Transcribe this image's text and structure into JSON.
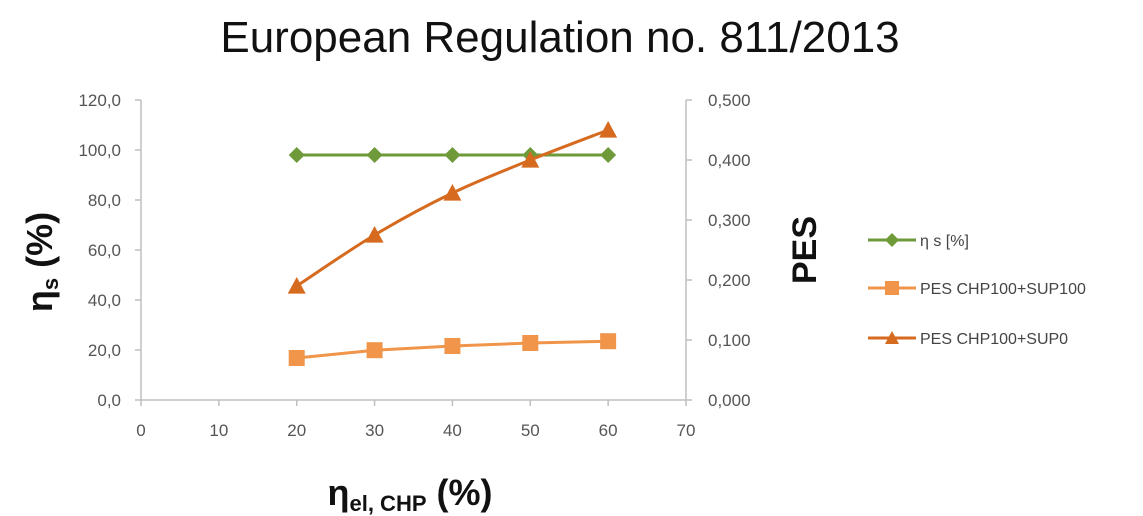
{
  "chart_data": {
    "type": "line",
    "title": "European Regulation no. 811/2013",
    "xlabel": {
      "main": "η",
      "sub": "el, CHP",
      "unit": " (%)"
    },
    "ylabel_left": {
      "main": "η",
      "sub": "s",
      "unit": " (%)"
    },
    "ylabel_right": "PES",
    "x": [
      20,
      30,
      40,
      50,
      60
    ],
    "xlim": [
      0,
      70
    ],
    "xticks": [
      "0",
      "10",
      "20",
      "30",
      "40",
      "50",
      "60",
      "70"
    ],
    "ylim_left": [
      0,
      120
    ],
    "yticks_left": [
      "0,0",
      "20,0",
      "40,0",
      "60,0",
      "80,0",
      "100,0",
      "120,0"
    ],
    "ylim_right": [
      0,
      0.5
    ],
    "yticks_right": [
      "0,000",
      "0,100",
      "0,200",
      "0,300",
      "0,400",
      "0,500"
    ],
    "grid": false,
    "legend_position": "right",
    "series": [
      {
        "name": "η s [%]",
        "axis": "left",
        "marker": "diamond",
        "color": "#6f9a3a",
        "values": [
          98,
          98,
          98,
          98,
          98
        ]
      },
      {
        "name": "PES CHP100+SUP100",
        "axis": "right",
        "marker": "square",
        "color": "#f0954a",
        "values": [
          0.07,
          0.083,
          0.09,
          0.095,
          0.098
        ]
      },
      {
        "name": "PES CHP100+SUP0",
        "axis": "right",
        "marker": "triangle",
        "color": "#d66a1f",
        "values": [
          0.19,
          0.275,
          0.345,
          0.4,
          0.45
        ]
      }
    ]
  }
}
